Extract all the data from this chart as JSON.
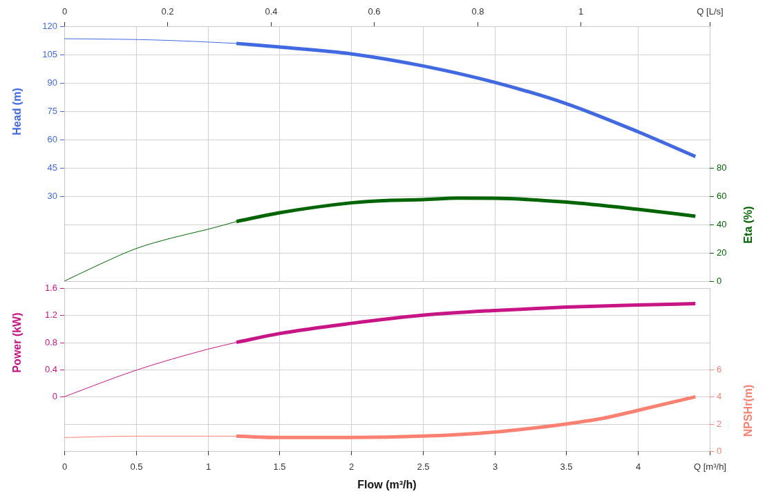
{
  "chart_data": [
    {
      "type": "line",
      "xlim": [
        0,
        4.5
      ],
      "xticks": [
        {
          "value": 0,
          "label": null
        },
        {
          "value": 0.5,
          "label": null
        },
        {
          "value": 1,
          "label": null
        },
        {
          "value": 1.5,
          "label": null
        },
        {
          "value": 2,
          "label": null
        },
        {
          "value": 2.5,
          "label": null
        },
        {
          "value": 3,
          "label": null
        },
        {
          "value": 3.5,
          "label": null
        },
        {
          "value": 4,
          "label": null
        },
        {
          "value": 4.5,
          "label": null
        }
      ],
      "tick_labels": "y",
      "x2lim": [
        0,
        1.25
      ],
      "x2ticks": [
        0,
        0.2,
        0.4,
        0.6,
        0.8,
        1,
        {
          "value": 1.25,
          "label": "Q [L/s]"
        }
      ],
      "ylabel": "Head (m)",
      "ylim": [
        -15,
        120
      ],
      "yticks": [
        {
          "value": -15,
          "label": null
        },
        {
          "value": 0,
          "label": null
        },
        {
          "value": 15,
          "label": null
        },
        30,
        45,
        60,
        75,
        90,
        105,
        120
      ],
      "y2label": "Eta (%)",
      "y2lim": [
        0,
        180
      ],
      "y2ticks": [
        0,
        20,
        40,
        60,
        80
      ],
      "grid": true,
      "series": [
        {
          "color": "#4169e1",
          "x": [
            0,
            0.3,
            0.6,
            0.9,
            1.2
          ],
          "values": [
            113.4,
            113.2,
            112.8,
            112,
            110.9
          ]
        },
        {
          "color": "#4169e1",
          "x": [
            1.2,
            1.5,
            2,
            2.5,
            3,
            3.5,
            4,
            4.4
          ],
          "values": [
            110.9,
            109,
            105.4,
            99,
            90.3,
            79,
            64.1,
            51
          ]
        },
        {
          "color": "#006400",
          "axis": "y2",
          "x": [
            0,
            0.25,
            0.5,
            0.75,
            1,
            1.2
          ],
          "values": [
            0,
            12,
            23,
            30.5,
            36.6,
            42.1
          ]
        },
        {
          "color": "#006400",
          "axis": "y2",
          "x": [
            1.2,
            1.5,
            2,
            2.25,
            2.5,
            2.75,
            3,
            3.5,
            4,
            4.4
          ],
          "values": [
            42.1,
            48.3,
            55.3,
            57,
            57.6,
            58.6,
            58.5,
            55.8,
            50.7,
            45.9
          ]
        }
      ]
    },
    {
      "type": "line",
      "xlabel": "Flow (m³/h)",
      "xlim": [
        0,
        4.5
      ],
      "xticks": [
        0,
        0.5,
        1,
        1.5,
        2,
        2.5,
        3,
        3.5,
        4,
        {
          "value": 4.5,
          "label": "Q [m³/h]"
        }
      ],
      "ylabel": "Power (kW)",
      "ylim": [
        -0.8,
        1.6
      ],
      "yticks": [
        {
          "value": -0.8,
          "label": null
        },
        {
          "value": -0.4,
          "label": null
        },
        0,
        0.4,
        0.8,
        1.2,
        1.6
      ],
      "y2label": "NPSHr(m)",
      "y2lim": [
        0,
        12
      ],
      "y2ticks": [
        0,
        2,
        4,
        6
      ],
      "grid": true,
      "series": [
        {
          "color": "#c71585",
          "x": [
            0,
            0.5,
            1,
            1.2
          ],
          "values": [
            0,
            0.39,
            0.7,
            0.8
          ]
        },
        {
          "color": "#c71585",
          "x": [
            1.2,
            1.5,
            2,
            2.5,
            3,
            3.5,
            4,
            4.4
          ],
          "values": [
            0.8,
            0.93,
            1.08,
            1.2,
            1.27,
            1.32,
            1.35,
            1.37
          ]
        },
        {
          "color": "#fa8072",
          "axis": "y2",
          "x": [
            0,
            0.5,
            1,
            1.2
          ],
          "values": [
            1.0,
            1.1,
            1.1,
            1.1
          ]
        },
        {
          "color": "#fa8072",
          "axis": "y2",
          "x": [
            1.2,
            1.5,
            2,
            2.5,
            3,
            3.5,
            3.75,
            4,
            4.4
          ],
          "values": [
            1.1,
            1.0,
            1.0,
            1.1,
            1.4,
            2.0,
            2.4,
            3.0,
            4.0
          ]
        }
      ]
    }
  ]
}
